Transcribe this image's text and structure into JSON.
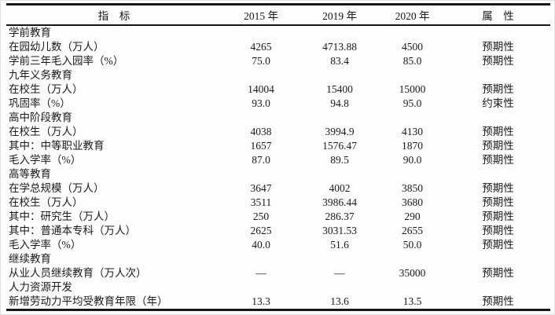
{
  "table": {
    "columns": [
      "指　标",
      "2015 年",
      "2019 年",
      "2020 年",
      "属　性"
    ],
    "rows": [
      [
        "学前教育",
        "",
        "",
        "",
        ""
      ],
      [
        "在园幼儿数（万人）",
        "4265",
        "4713.88",
        "4500",
        "预期性"
      ],
      [
        "学前三年毛入园率（%）",
        "75.0",
        "83.4",
        "85.0",
        "预期性"
      ],
      [
        "九年义务教育",
        "",
        "",
        "",
        ""
      ],
      [
        "在校生（万人）",
        "14004",
        "15400",
        "15000",
        "预期性"
      ],
      [
        "巩固率（%）",
        "93.0",
        "94.8",
        "95.0",
        "约束性"
      ],
      [
        "高中阶段教育",
        "",
        "",
        "",
        ""
      ],
      [
        "在校生（万人）",
        "4038",
        "3994.9",
        "4130",
        "预期性"
      ],
      [
        "其中：中等职业教育",
        "1657",
        "1576.47",
        "1870",
        "预期性"
      ],
      [
        "毛入学率（%）",
        "87.0",
        "89.5",
        "90.0",
        "预期性"
      ],
      [
        "高等教育",
        "",
        "",
        "",
        ""
      ],
      [
        "在学总规模（万人）",
        "3647",
        "4002",
        "3850",
        "预期性"
      ],
      [
        "在校生（万人）",
        "3511",
        "3986.44",
        "3680",
        "预期性"
      ],
      [
        "其中：研究生（万人）",
        "250",
        "286.37",
        "290",
        "预期性"
      ],
      [
        "其中：普通本专科（万人）",
        "2625",
        "3031.53",
        "2655",
        "预期性"
      ],
      [
        "毛入学率（%）",
        "40.0",
        "51.6",
        "50.0",
        "预期性"
      ],
      [
        "继续教育",
        "",
        "",
        "",
        ""
      ],
      [
        "从业人员继续教育（万人次）",
        "—",
        "—",
        "35000",
        "预期性"
      ],
      [
        "人力资源开发",
        "",
        "",
        "",
        ""
      ],
      [
        "新增劳动力平均受教育年限（年）",
        "13.3",
        "13.6",
        "13.5",
        "预期性"
      ]
    ],
    "ink_color": "#161616",
    "paper_color": "#fdfdfd"
  }
}
